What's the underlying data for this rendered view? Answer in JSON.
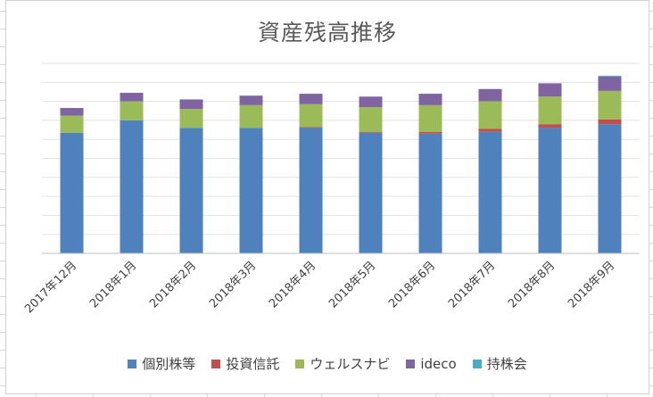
{
  "chart_data": {
    "type": "bar",
    "stacked": true,
    "title": "資産残高推移",
    "xlabel": "",
    "ylabel": "",
    "ylim": [
      0,
      100
    ],
    "grid": true,
    "legend_position": "bottom",
    "categories": [
      "2017年12月",
      "2018年1月",
      "2018年2月",
      "2018年3月",
      "2018年4月",
      "2018年5月",
      "2018年6月",
      "2018年7月",
      "2018年8月",
      "2018年9月"
    ],
    "series": [
      {
        "name": "個別株等",
        "color": "#4f81bd",
        "values": [
          63.5,
          70,
          66,
          66,
          66,
          63.5,
          63,
          64,
          66,
          68
        ]
      },
      {
        "name": "投資信託",
        "color": "#c0504d",
        "values": [
          0,
          0,
          0,
          0,
          0.5,
          0.5,
          1,
          1.5,
          2,
          2.5
        ]
      },
      {
        "name": "ウェルスナビ",
        "color": "#9bbb59",
        "values": [
          9,
          10,
          10,
          12,
          12,
          13,
          14,
          14.5,
          14.5,
          15
        ]
      },
      {
        "name": "ideco",
        "color": "#8064a2",
        "values": [
          4,
          4.5,
          5,
          5,
          5.5,
          5.5,
          6,
          6.5,
          7,
          7.5
        ]
      },
      {
        "name": "持株会",
        "color": "#4bacc6",
        "values": [
          0,
          0,
          0,
          0,
          0,
          0,
          0,
          0,
          0,
          0.5
        ]
      }
    ]
  }
}
